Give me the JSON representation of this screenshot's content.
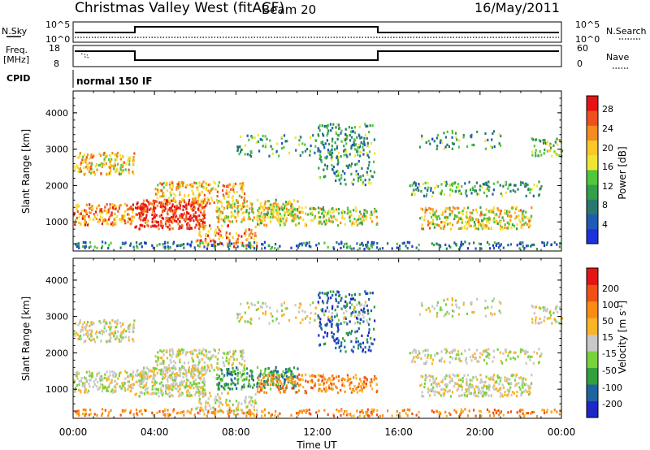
{
  "header": {
    "title": "Christmas Valley West (fitACF)",
    "beam": "Beam 20",
    "date": "16/May/2011"
  },
  "status_panels": {
    "nsky_label": "N.Sky",
    "nsky_ticks": [
      "10^5",
      "10^0"
    ],
    "nsearch_label": "N.Search",
    "nsearch_ticks": [
      "10^5",
      "10^0"
    ],
    "freq_label_1": "Freq.",
    "freq_label_2": "[MHz]",
    "freq_ticks": [
      "18",
      "8"
    ],
    "nave_label": "Nave",
    "nave_ticks": [
      "60",
      "0"
    ],
    "cpid_label": "CPID",
    "cpid_value": "normal 150 IF"
  },
  "chart_data": [
    {
      "type": "heatmap",
      "name": "power",
      "ylabel": "Slant Range [km]",
      "yticks": [
        1000,
        2000,
        3000,
        4000
      ],
      "ylim": [
        200,
        4600
      ],
      "xlim": [
        0,
        24
      ],
      "xlabel": "Time UT",
      "xtick_labels": [
        "00:00",
        "04:00",
        "08:00",
        "12:00",
        "16:00",
        "20:00",
        "00:00"
      ],
      "colorbar": {
        "label": "Power [dB]",
        "ticks": [
          "4",
          "8",
          "12",
          "16",
          "20",
          "24",
          "28"
        ],
        "colors": [
          "#1c32dc",
          "#1f5ab4",
          "#28786e",
          "#32a048",
          "#50c83c",
          "#f0e632",
          "#fac828",
          "#f58c1e",
          "#f0501e",
          "#e61414"
        ]
      }
    },
    {
      "type": "heatmap",
      "name": "velocity",
      "ylabel": "Slant Range [km]",
      "yticks": [
        1000,
        2000,
        3000,
        4000
      ],
      "ylim": [
        200,
        4600
      ],
      "xlim": [
        0,
        24
      ],
      "xlabel": "Time UT",
      "xtick_labels": [
        "00:00",
        "04:00",
        "08:00",
        "12:00",
        "16:00",
        "20:00",
        "00:00"
      ],
      "colorbar": {
        "label": "Velocity [m s",
        "label_sup": "-1",
        "label_end": "]",
        "ticks": [
          "200",
          "100",
          "50",
          "15",
          "-15",
          "-50",
          "-100",
          "-200"
        ],
        "colors": [
          "#1e28c8",
          "#1e64a0",
          "#32a03c",
          "#78d23c",
          "#c8c8c8",
          "#fab428",
          "#fa8c14",
          "#f05014",
          "#e61414"
        ]
      }
    }
  ],
  "footer": {
    "xlabel": "Time UT"
  }
}
